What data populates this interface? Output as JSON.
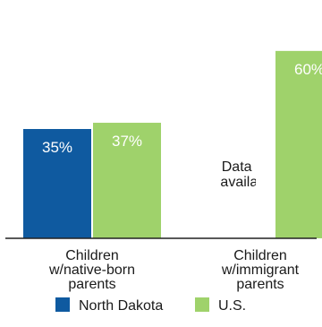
{
  "chart_data": {
    "type": "bar",
    "categories": [
      [
        "Children",
        "w/native-born",
        "parents"
      ],
      [
        "Children",
        "w/immigrant",
        "parents"
      ]
    ],
    "series": [
      {
        "name": "North Dakota",
        "color": "#0f5aa0",
        "values": [
          35,
          null
        ],
        "labels": [
          "35%",
          ""
        ]
      },
      {
        "name": "U.S.",
        "color": "#9fd26b",
        "values": [
          37,
          60
        ],
        "labels": [
          "37%",
          "60%"
        ]
      }
    ],
    "annotations": [
      {
        "category_index": 1,
        "series_index": 0,
        "text": [
          "Data not",
          "available"
        ]
      }
    ],
    "ylim": [
      0,
      70
    ],
    "grid": false,
    "legend_position": "bottom"
  }
}
